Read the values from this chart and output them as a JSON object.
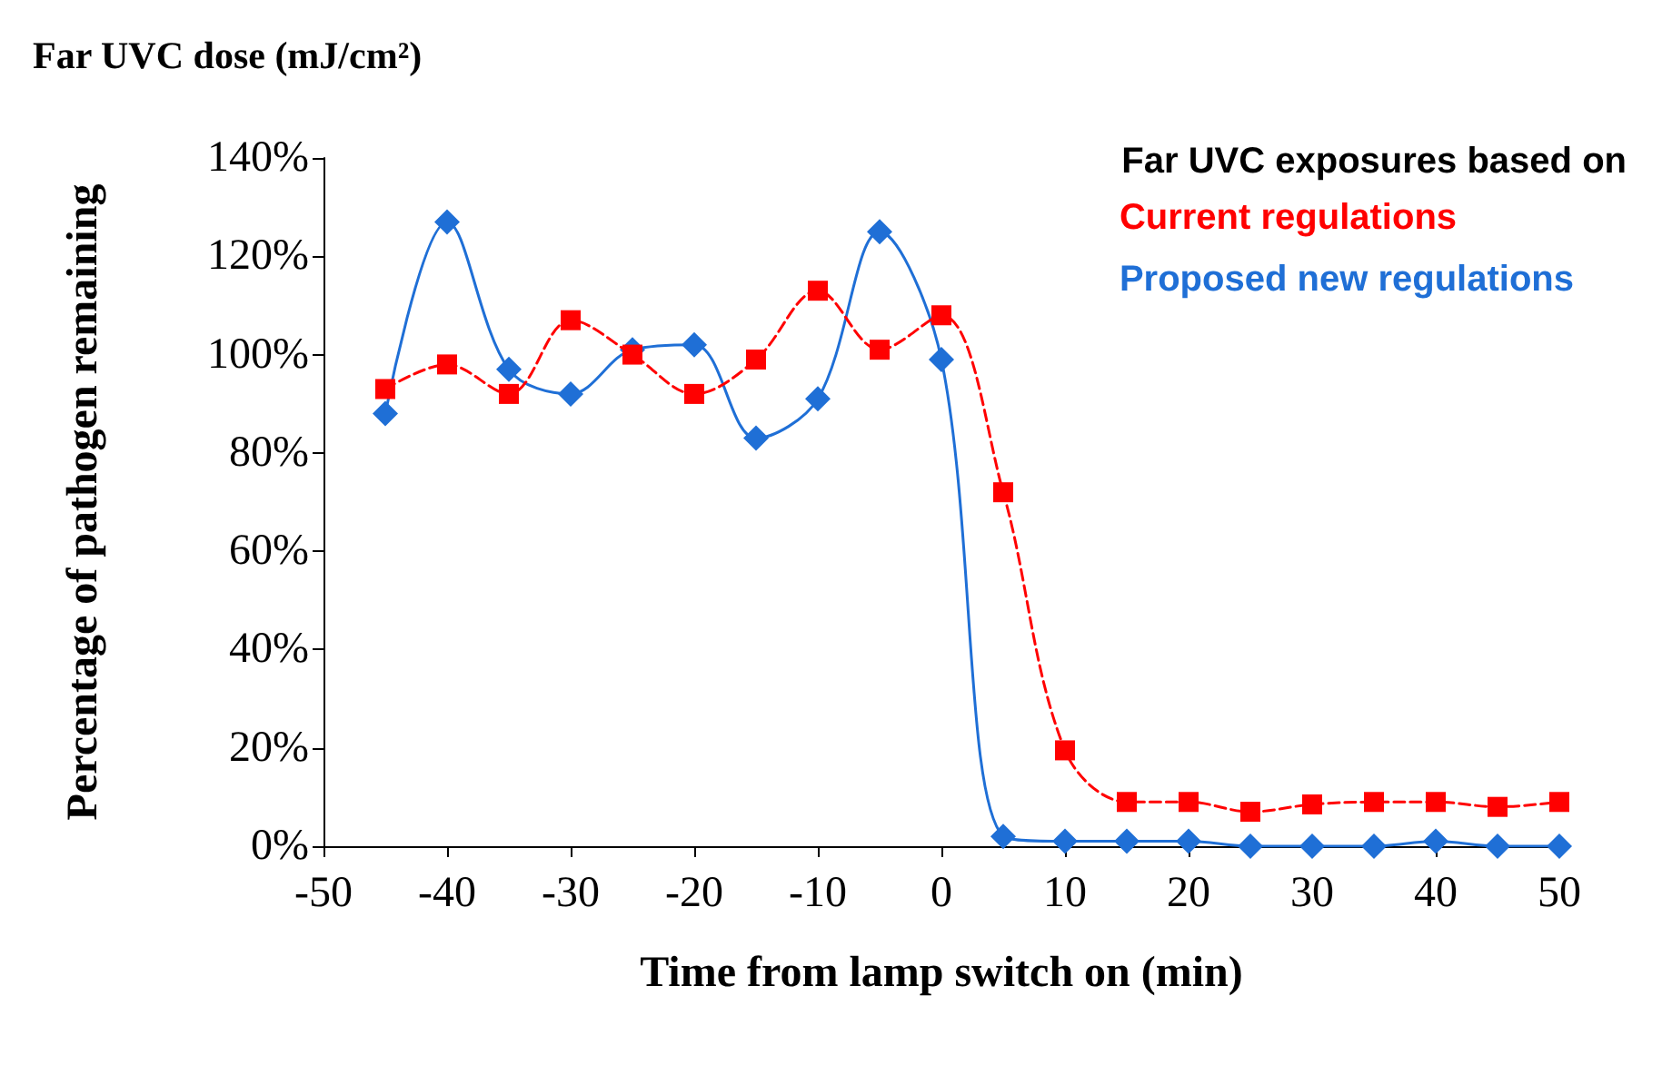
{
  "chart_data": {
    "type": "line",
    "xlabel": "Time from lamp switch on (min)",
    "ylabel": "Percentage of pathogen remaining",
    "legend_title": "Far UVC exposures based on",
    "annotations": [
      "Far UVC dose (mJ/cm²)"
    ],
    "x": [
      -45,
      -40,
      -35,
      -30,
      -25,
      -20,
      -15,
      -10,
      -5,
      0,
      5,
      10,
      15,
      20,
      25,
      30,
      35,
      40,
      45,
      50
    ],
    "series": [
      {
        "name": "Current regulations",
        "color": "#ff0000",
        "marker": "square",
        "line_style": "dashed",
        "values": [
          93,
          98,
          92,
          107,
          100,
          92,
          99,
          113,
          101,
          108,
          72,
          19.5,
          9,
          9,
          7,
          8.5,
          9,
          9,
          8,
          9
        ]
      },
      {
        "name": "Proposed new regulations",
        "color": "#1f6fd6",
        "marker": "diamond",
        "line_style": "solid",
        "values": [
          88,
          127,
          97,
          92,
          101,
          102,
          83,
          91,
          125,
          99,
          2,
          1,
          1,
          1,
          0,
          0,
          0,
          1,
          0,
          0
        ]
      }
    ],
    "xlim": [
      -50,
      50
    ],
    "xticks": [
      -50,
      -40,
      -30,
      -20,
      -10,
      0,
      10,
      20,
      30,
      40,
      50
    ],
    "ylim": [
      0,
      140
    ],
    "yticks": [
      {
        "value": 0,
        "label": "0%"
      },
      {
        "value": 20,
        "label": "20%"
      },
      {
        "value": 40,
        "label": "40%"
      },
      {
        "value": 60,
        "label": "60%"
      },
      {
        "value": 80,
        "label": "80%"
      },
      {
        "value": 100,
        "label": "100%"
      },
      {
        "value": 120,
        "label": "120%"
      },
      {
        "value": 140,
        "label": "140%"
      }
    ],
    "grid": false,
    "legend": "top right"
  }
}
